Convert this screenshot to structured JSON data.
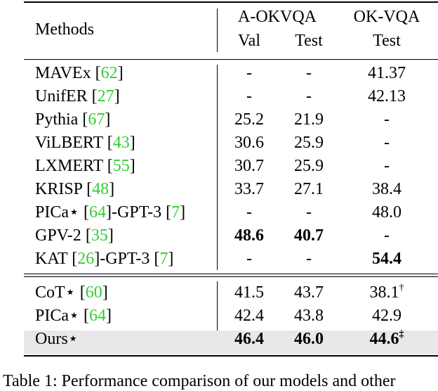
{
  "header": {
    "methods": "Methods",
    "group_aokvqa": "A-OKVQA",
    "group_okvqa": "OK-VQA",
    "col_val": "Val",
    "col_test_a": "Test",
    "col_test_ok": "Test"
  },
  "rows": [
    {
      "name": "MAVEx",
      "refs": [
        {
          "pre": "[",
          "num": "62",
          "post": "]"
        }
      ],
      "val": "-",
      "test": "-",
      "ok": "41.37"
    },
    {
      "name": "UnifER",
      "refs": [
        {
          "pre": "[",
          "num": "27",
          "post": "]"
        }
      ],
      "val": "-",
      "test": "-",
      "ok": "42.13"
    },
    {
      "name": "Pythia",
      "refs": [
        {
          "pre": "[",
          "num": "67",
          "post": "]"
        }
      ],
      "val": "25.2",
      "test": "21.9",
      "ok": "-"
    },
    {
      "name": "ViLBERT",
      "refs": [
        {
          "pre": "[",
          "num": "43",
          "post": "]"
        }
      ],
      "val": "30.6",
      "test": "25.9",
      "ok": "-"
    },
    {
      "name": "LXMERT",
      "refs": [
        {
          "pre": "[",
          "num": "55",
          "post": "]"
        }
      ],
      "val": "30.7",
      "test": "25.9",
      "ok": "-"
    },
    {
      "name": "KRISP",
      "refs": [
        {
          "pre": "[",
          "num": "48",
          "post": "]"
        }
      ],
      "val": "33.7",
      "test": "27.1",
      "ok": "38.4"
    },
    {
      "name": "PICa⋆",
      "refs": [
        {
          "pre": "[",
          "num": "64",
          "post": "]-GPT-3"
        },
        {
          "pre": "[",
          "num": "7",
          "post": "]"
        }
      ],
      "val": "-",
      "test": "-",
      "ok": "48.0"
    },
    {
      "name": "GPV-2",
      "refs": [
        {
          "pre": "[",
          "num": "35",
          "post": "]"
        }
      ],
      "val": "48.6",
      "test": "40.7",
      "ok": "-",
      "bold": [
        "val",
        "test"
      ]
    },
    {
      "name": "KAT",
      "refs": [
        {
          "pre": "[",
          "num": "26",
          "post": "]-GPT-3"
        },
        {
          "pre": "[",
          "num": "7",
          "post": "]"
        }
      ],
      "val": "-",
      "test": "-",
      "ok": "54.4",
      "bold": [
        "ok"
      ]
    },
    {
      "name": "CoT⋆",
      "refs": [
        {
          "pre": "[",
          "num": "60",
          "post": "]"
        }
      ],
      "val": "41.5",
      "test": "43.7",
      "ok": "38.1",
      "ok_mark": "†"
    },
    {
      "name": "PICa⋆",
      "refs": [
        {
          "pre": "[",
          "num": "64",
          "post": "]"
        }
      ],
      "val": "42.4",
      "test": "43.8",
      "ok": "42.9"
    },
    {
      "name": "Ours⋆",
      "refs": [],
      "val": "46.4",
      "test": "46.0",
      "ok": "44.6",
      "ok_mark": "‡",
      "bold": [
        "val",
        "test",
        "ok"
      ],
      "highlight": true
    }
  ],
  "caption": "Table 1: Performance comparison of our models and other"
}
